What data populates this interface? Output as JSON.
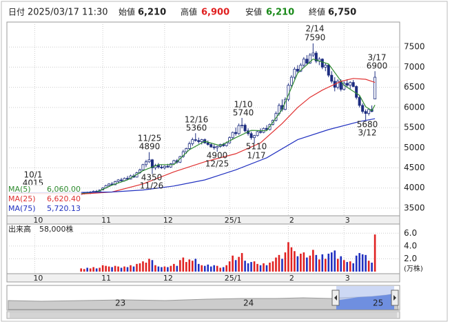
{
  "header": {
    "fields": [
      {
        "label": "日付",
        "value": "2025/03/17 11:30"
      },
      {
        "label": "始値",
        "value": "6,210"
      },
      {
        "label": "高値",
        "value": "6,900"
      },
      {
        "label": "安値",
        "value": "6,210"
      },
      {
        "label": "終値",
        "value": "6,750"
      }
    ]
  },
  "chart_data": {
    "type": "candlestick",
    "x": [
      0,
      1,
      2,
      3,
      4,
      5,
      6,
      7,
      8,
      9,
      10,
      11,
      12,
      13,
      14,
      15,
      16,
      17,
      18,
      19,
      20,
      21,
      22,
      23,
      24,
      25,
      26,
      27,
      28,
      29,
      30,
      31,
      32,
      33,
      34,
      35,
      36,
      37,
      38,
      39,
      40,
      41,
      42,
      43,
      44,
      45,
      46,
      47,
      48,
      49,
      50,
      51,
      52,
      53,
      54,
      55,
      56,
      57,
      58,
      59,
      60,
      61,
      62,
      63,
      64,
      65,
      66,
      67,
      68,
      69,
      70,
      71,
      72,
      73,
      74,
      75,
      76,
      77,
      78,
      79,
      80,
      81,
      82,
      83,
      84,
      85,
      86,
      87,
      88,
      89,
      90,
      91,
      92,
      93,
      94,
      95
    ],
    "open": [
      3850,
      3860,
      3880,
      3870,
      3900,
      3920,
      3910,
      3950,
      4000,
      4060,
      4100,
      4080,
      4160,
      4200,
      4180,
      4240,
      4220,
      4300,
      4270,
      4380,
      4450,
      4580,
      4650,
      4700,
      4500,
      4560,
      4520,
      4500,
      4540,
      4520,
      4600,
      4680,
      4640,
      4780,
      4900,
      4980,
      5100,
      5200,
      5180,
      5150,
      5200,
      5120,
      5080,
      5020,
      5000,
      5030,
      5080,
      5050,
      5120,
      5250,
      5380,
      5350,
      5550,
      5560,
      5420,
      5350,
      5250,
      5300,
      5400,
      5380,
      5480,
      5450,
      5580,
      5680,
      5850,
      6050,
      5950,
      6200,
      6550,
      6750,
      6950,
      6900,
      7050,
      7200,
      7100,
      7300,
      7350,
      7150,
      7200,
      7000,
      7050,
      6800,
      6650,
      6500,
      6650,
      6450,
      6600,
      6550,
      6620,
      6520,
      6250,
      6050,
      5900,
      5850,
      5950,
      6210
    ],
    "high": [
      3880,
      3900,
      3910,
      3920,
      3940,
      3950,
      3960,
      4020,
      4080,
      4120,
      4150,
      4180,
      4220,
      4250,
      4260,
      4300,
      4330,
      4350,
      4400,
      4480,
      4600,
      4700,
      4890,
      4720,
      4600,
      4620,
      4580,
      4560,
      4600,
      4620,
      4700,
      4720,
      4800,
      4950,
      5000,
      5150,
      5250,
      5360,
      5250,
      5220,
      5230,
      5180,
      5120,
      5080,
      5050,
      5100,
      5120,
      5150,
      5280,
      5400,
      5500,
      5600,
      5740,
      5600,
      5480,
      5400,
      5320,
      5420,
      5480,
      5500,
      5560,
      5600,
      5700,
      5900,
      6100,
      6200,
      6250,
      6600,
      6800,
      7000,
      7050,
      7100,
      7250,
      7300,
      7350,
      7590,
      7400,
      7250,
      7220,
      7100,
      7080,
      6900,
      6750,
      6700,
      6700,
      6650,
      6700,
      6650,
      6680,
      6550,
      6300,
      6100,
      5950,
      5980,
      6050,
      6900
    ],
    "low": [
      3820,
      3840,
      3860,
      3850,
      3880,
      3890,
      3900,
      3940,
      3990,
      4030,
      4060,
      4070,
      4130,
      4150,
      4160,
      4200,
      4210,
      4250,
      4260,
      4350,
      4430,
      4520,
      4620,
      4350,
      4450,
      4480,
      4470,
      4460,
      4500,
      4500,
      4580,
      4600,
      4620,
      4750,
      4850,
      4950,
      5050,
      5150,
      5100,
      5080,
      5100,
      5050,
      5000,
      4950,
      4900,
      5000,
      5020,
      5030,
      5100,
      5200,
      5300,
      5320,
      5480,
      5380,
      5300,
      5200,
      5110,
      5280,
      5350,
      5360,
      5420,
      5430,
      5550,
      5650,
      5800,
      5900,
      5930,
      6150,
      6500,
      6700,
      6850,
      6880,
      7000,
      7050,
      7080,
      7250,
      7100,
      7050,
      6950,
      6900,
      6750,
      6600,
      6400,
      6450,
      6400,
      6420,
      6500,
      6450,
      6500,
      6200,
      6000,
      5850,
      5680,
      5800,
      5880,
      6210
    ],
    "close": [
      3860,
      3880,
      3870,
      3900,
      3920,
      3910,
      3950,
      4000,
      4060,
      4100,
      4080,
      4160,
      4200,
      4180,
      4240,
      4220,
      4300,
      4270,
      4380,
      4450,
      4580,
      4650,
      4700,
      4500,
      4560,
      4520,
      4500,
      4540,
      4520,
      4600,
      4680,
      4640,
      4780,
      4900,
      4980,
      5100,
      5200,
      5180,
      5150,
      5200,
      5120,
      5080,
      5020,
      5000,
      5030,
      5080,
      5050,
      5120,
      5250,
      5380,
      5350,
      5550,
      5560,
      5420,
      5350,
      5250,
      5300,
      5400,
      5380,
      5480,
      5450,
      5580,
      5680,
      5850,
      6050,
      5950,
      6200,
      6550,
      6750,
      6950,
      6900,
      7050,
      7200,
      7100,
      7300,
      7350,
      7150,
      7200,
      7000,
      7050,
      6800,
      6650,
      6500,
      6650,
      6450,
      6600,
      6550,
      6620,
      6520,
      6250,
      6050,
      5900,
      5850,
      5950,
      5900,
      6750
    ],
    "up_color": "#ffffff",
    "down_color": "#1c2c80",
    "wick_color": "#1c2c80",
    "xlim": [
      -24,
      103
    ],
    "xticks": [
      {
        "value": -15,
        "label": "10"
      },
      {
        "value": 7,
        "label": "11"
      },
      {
        "value": 27,
        "label": "12"
      },
      {
        "value": 48,
        "label": "25/1"
      },
      {
        "value": 67,
        "label": "2"
      },
      {
        "value": 85,
        "label": "3"
      }
    ],
    "ylim": [
      3310,
      8120
    ],
    "yticks": [
      3500,
      4000,
      4500,
      5000,
      5500,
      6000,
      6500,
      7000,
      7500
    ],
    "grid": true,
    "series": [
      {
        "name": "MA(5)",
        "color": "#2e8b2e",
        "value": 6060,
        "value_label": "6,060.00",
        "x": [
          0,
          5,
          10,
          15,
          20,
          25,
          30,
          35,
          40,
          45,
          50,
          55,
          60,
          65,
          70,
          75,
          80,
          85,
          90,
          92,
          94,
          95
        ],
        "values": [
          3860,
          3900,
          4070,
          4200,
          4430,
          4580,
          4580,
          4950,
          5160,
          5050,
          5250,
          5430,
          5420,
          5950,
          6850,
          7200,
          7080,
          6550,
          6300,
          6020,
          5920,
          6060
        ]
      },
      {
        "name": "MA(25)",
        "color": "#e03030",
        "value": 6620.4,
        "value_label": "6,620.40",
        "x": [
          -23,
          0,
          10,
          20,
          30,
          40,
          50,
          58,
          65,
          70,
          74,
          78,
          84,
          88,
          92,
          95
        ],
        "values": [
          3870,
          3850,
          3900,
          4100,
          4400,
          4650,
          4850,
          5120,
          5600,
          6000,
          6250,
          6430,
          6650,
          6720,
          6700,
          6620
        ]
      },
      {
        "name": "MA(75)",
        "color": "#2030c0",
        "value": 5720.13,
        "value_label": "5,720.13",
        "x": [
          -23,
          0,
          10,
          20,
          30,
          40,
          50,
          60,
          70,
          80,
          90,
          95
        ],
        "values": [
          3880,
          3890,
          3900,
          3950,
          4050,
          4200,
          4450,
          4750,
          5200,
          5450,
          5650,
          5720
        ]
      }
    ],
    "annotations": [
      {
        "date": "10/1",
        "value": 4015
      },
      {
        "date": "11/25",
        "value": 4890
      },
      {
        "date": "11/26",
        "value": 4350
      },
      {
        "date": "12/16",
        "value": 5360
      },
      {
        "date": "12/25",
        "value": 4900
      },
      {
        "date": "1/10",
        "value": 5740
      },
      {
        "date": "1/17",
        "value": 5110
      },
      {
        "date": "2/14",
        "value": 7590
      },
      {
        "date": "3/12",
        "value": 5680
      },
      {
        "date": "3/17",
        "value": 6900
      }
    ]
  },
  "volume": {
    "type": "bar",
    "title": "出来高",
    "value_label": "58,000株",
    "unit": "(万株)",
    "values": [
      0.5,
      0.4,
      0.6,
      0.5,
      0.7,
      0.5,
      0.6,
      1.0,
      0.9,
      0.8,
      0.7,
      0.9,
      0.8,
      0.6,
      0.8,
      0.7,
      1.0,
      0.8,
      1.2,
      1.3,
      1.6,
      1.4,
      2.0,
      1.8,
      1.0,
      0.8,
      0.7,
      0.8,
      0.7,
      0.9,
      1.2,
      0.9,
      1.8,
      2.2,
      1.5,
      1.9,
      1.7,
      2.0,
      1.2,
      1.0,
      0.9,
      1.1,
      0.8,
      1.0,
      0.9,
      0.6,
      0.7,
      1.0,
      1.6,
      2.5,
      1.8,
      2.3,
      2.9,
      1.7,
      1.3,
      1.5,
      1.6,
      1.2,
      1.0,
      1.3,
      1.0,
      1.4,
      1.6,
      2.2,
      2.6,
      2.0,
      3.0,
      4.6,
      3.8,
      3.2,
      2.4,
      2.8,
      3.0,
      2.2,
      2.5,
      3.4,
      2.6,
      1.9,
      2.7,
      2.0,
      2.8,
      3.0,
      3.3,
      2.0,
      2.4,
      1.8,
      1.5,
      1.6,
      1.3,
      2.5,
      2.9,
      2.7,
      2.6,
      1.7,
      1.4,
      5.8
    ],
    "up_color": "#e02020",
    "down_color": "#2030c0",
    "ylim": [
      0,
      7
    ],
    "yticks": [
      {
        "value": 2,
        "label": "2.0"
      },
      {
        "value": 4,
        "label": "4.0"
      },
      {
        "value": 6,
        "label": "6.0"
      }
    ]
  },
  "navigator": {
    "labels": [
      "23",
      "24",
      "25"
    ]
  }
}
